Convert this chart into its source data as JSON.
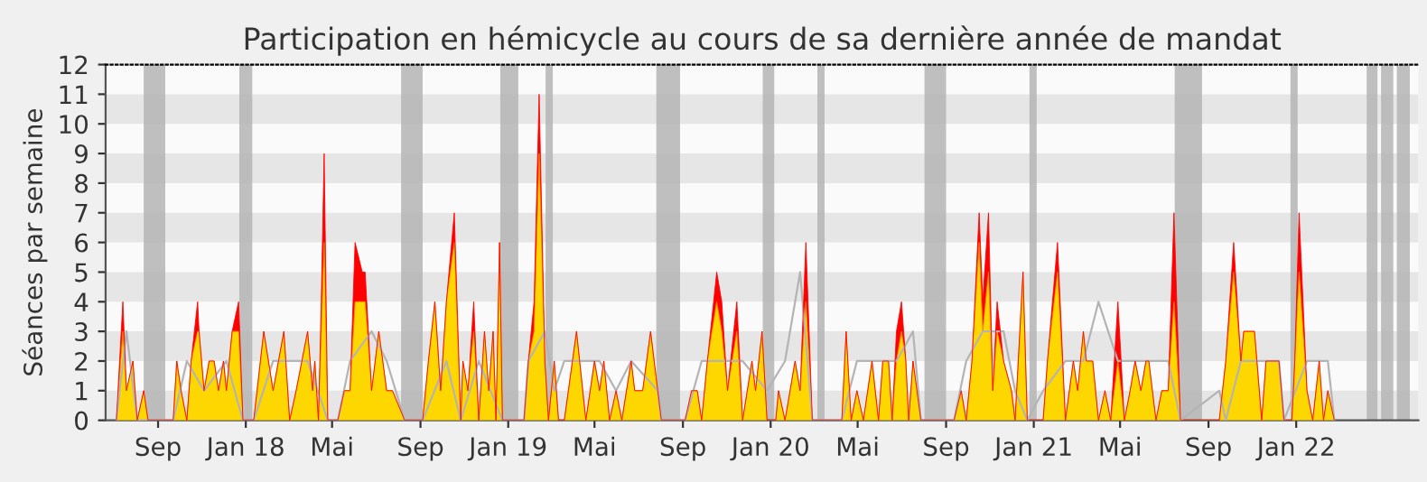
{
  "chart_data": {
    "type": "area",
    "title": "Participation en hémicycle au cours de sa dernière année de mandat",
    "ylabel": "Séances par semaine",
    "xlim": [
      "2017-06-20",
      "2022-06-20"
    ],
    "ylim": [
      0,
      12
    ],
    "yticks": [
      0,
      1,
      2,
      3,
      4,
      5,
      6,
      7,
      8,
      9,
      10,
      11,
      12
    ],
    "xticks": [
      {
        "value": "2017-09-01",
        "label": "Sep"
      },
      {
        "value": "2018-01-01",
        "label": "Jan 18"
      },
      {
        "value": "2018-05-01",
        "label": "Mai"
      },
      {
        "value": "2018-09-01",
        "label": "Sep"
      },
      {
        "value": "2019-01-01",
        "label": "Jan 19"
      },
      {
        "value": "2019-05-01",
        "label": "Mai"
      },
      {
        "value": "2019-09-01",
        "label": "Sep"
      },
      {
        "value": "2020-01-01",
        "label": "Jan 20"
      },
      {
        "value": "2020-05-01",
        "label": "Mai"
      },
      {
        "value": "2020-09-01",
        "label": "Sep"
      },
      {
        "value": "2021-01-01",
        "label": "Jan 21"
      },
      {
        "value": "2021-05-01",
        "label": "Mai"
      },
      {
        "value": "2021-09-01",
        "label": "Sep"
      },
      {
        "value": "2022-01-01",
        "label": "Jan 22"
      }
    ],
    "legend": false,
    "series": [
      {
        "color": "#ff0000",
        "x": [
          "2017-07-05",
          "2017-07-14",
          "2017-07-19",
          "2017-07-28",
          "2017-08-03",
          "2017-08-12",
          "2017-08-18",
          "2017-09-22",
          "2017-09-27",
          "2017-10-03",
          "2017-10-11",
          "2017-10-17",
          "2017-10-26",
          "2017-10-28",
          "2017-11-04",
          "2017-11-11",
          "2017-11-18",
          "2017-11-24",
          "2017-12-01",
          "2017-12-05",
          "2017-12-13",
          "2017-12-22",
          "2017-12-28",
          "2018-01-12",
          "2018-01-26",
          "2018-02-08",
          "2018-02-23",
          "2018-03-03",
          "2018-03-12",
          "2018-03-28",
          "2018-04-04",
          "2018-04-07",
          "2018-04-12",
          "2018-04-16",
          "2018-04-20",
          "2018-04-25",
          "2018-05-09",
          "2018-05-18",
          "2018-05-26",
          "2018-06-02",
          "2018-06-12",
          "2018-06-16",
          "2018-06-25",
          "2018-07-05",
          "2018-07-16",
          "2018-07-24",
          "2018-08-10",
          "2018-09-04",
          "2018-09-12",
          "2018-09-21",
          "2018-09-29",
          "2018-10-07",
          "2018-10-18",
          "2018-10-27",
          "2018-10-30",
          "2018-11-06",
          "2018-11-14",
          "2018-11-21",
          "2018-11-29",
          "2018-12-05",
          "2018-12-11",
          "2018-12-15",
          "2018-12-20",
          "2018-12-24",
          "2019-01-23",
          "2019-01-29",
          "2019-02-06",
          "2019-02-13",
          "2019-02-21",
          "2019-02-26",
          "2019-03-06",
          "2019-03-12",
          "2019-03-20",
          "2019-04-06",
          "2019-04-19",
          "2019-05-01",
          "2019-05-08",
          "2019-05-14",
          "2019-05-22",
          "2019-05-31",
          "2019-06-08",
          "2019-06-21",
          "2019-06-26",
          "2019-07-07",
          "2019-07-18",
          "2019-07-28",
          "2019-08-02",
          "2019-09-04",
          "2019-09-13",
          "2019-09-21",
          "2019-09-27",
          "2019-10-05",
          "2019-10-18",
          "2019-10-25",
          "2019-11-02",
          "2019-11-15",
          "2019-11-23",
          "2019-12-06",
          "2019-12-11",
          "2019-12-20",
          "2019-12-27",
          "2020-01-08",
          "2020-01-12",
          "2020-01-21",
          "2020-02-04",
          "2020-02-11",
          "2020-02-19",
          "2020-02-28",
          "2020-04-09",
          "2020-04-15",
          "2020-04-22",
          "2020-04-30",
          "2020-05-09",
          "2020-05-21",
          "2020-05-30",
          "2020-06-05",
          "2020-06-13",
          "2020-06-18",
          "2020-06-24",
          "2020-07-01",
          "2020-07-07",
          "2020-07-11",
          "2020-07-17",
          "2020-07-28",
          "2020-09-12",
          "2020-09-22",
          "2020-09-29",
          "2020-10-07",
          "2020-10-17",
          "2020-10-22",
          "2020-10-30",
          "2020-11-05",
          "2020-11-11",
          "2020-11-20",
          "2020-12-01",
          "2020-12-06",
          "2020-12-17",
          "2020-12-23",
          "2021-01-14",
          "2021-01-20",
          "2021-02-03",
          "2021-02-14",
          "2021-02-25",
          "2021-03-03",
          "2021-03-11",
          "2021-03-15",
          "2021-03-24",
          "2021-04-01",
          "2021-04-10",
          "2021-04-18",
          "2021-04-28",
          "2021-05-07",
          "2021-05-15",
          "2021-05-22",
          "2021-05-30",
          "2021-06-06",
          "2021-06-10",
          "2021-06-20",
          "2021-06-28",
          "2021-07-07",
          "2021-07-15",
          "2021-07-24",
          "2021-09-16",
          "2021-09-25",
          "2021-10-06",
          "2021-10-16",
          "2021-10-20",
          "2021-11-04",
          "2021-11-14",
          "2021-11-20",
          "2021-12-08",
          "2021-12-15",
          "2021-12-26",
          "2021-12-30",
          "2022-01-05",
          "2022-01-16",
          "2022-01-24",
          "2022-02-02",
          "2022-02-08",
          "2022-02-14",
          "2022-02-23"
        ],
        "values": [
          0,
          4,
          1,
          2,
          0,
          1,
          0,
          0,
          2,
          1,
          0,
          2,
          4,
          3,
          1,
          2,
          2,
          1,
          2,
          1,
          3,
          4,
          0,
          0,
          3,
          1,
          3,
          0,
          1,
          3,
          1,
          2,
          0,
          4,
          9,
          0,
          0,
          1,
          1,
          6,
          5,
          5,
          1,
          3,
          1,
          1,
          0,
          0,
          2,
          4,
          1,
          4,
          7,
          0,
          2,
          1,
          4,
          0,
          3,
          1,
          3,
          0,
          6,
          0,
          0,
          2,
          4,
          11,
          2,
          0,
          2,
          0,
          0,
          3,
          0,
          2,
          1,
          2,
          0,
          1,
          0,
          2,
          1,
          1,
          3,
          1,
          0,
          0,
          1,
          1,
          0,
          2,
          5,
          4,
          1,
          4,
          0,
          2,
          1,
          3,
          0,
          0,
          1,
          0,
          2,
          1,
          6,
          0,
          0,
          3,
          0,
          1,
          0,
          2,
          0,
          2,
          2,
          0,
          3,
          4,
          2,
          0,
          2,
          0,
          0,
          1,
          0,
          2,
          7,
          4,
          7,
          1,
          4,
          2,
          1,
          0,
          5,
          0,
          0,
          2,
          6,
          0,
          2,
          1,
          3,
          2,
          2,
          0,
          1,
          0,
          4,
          0,
          1,
          2,
          1,
          2,
          2,
          0,
          1,
          1,
          7,
          0,
          0,
          2,
          6,
          2,
          3,
          3,
          0,
          2,
          2,
          0,
          0,
          2,
          7,
          1,
          0,
          2,
          0,
          1,
          0
        ]
      },
      {
        "color": "#ffd700",
        "x": [
          "2017-07-05",
          "2017-07-14",
          "2017-07-19",
          "2017-07-28",
          "2017-08-03",
          "2017-08-12",
          "2017-08-18",
          "2017-09-22",
          "2017-09-27",
          "2017-10-03",
          "2017-10-11",
          "2017-10-17",
          "2017-10-26",
          "2017-10-28",
          "2017-11-04",
          "2017-11-11",
          "2017-11-18",
          "2017-11-24",
          "2017-12-01",
          "2017-12-05",
          "2017-12-13",
          "2017-12-22",
          "2017-12-28",
          "2018-01-12",
          "2018-01-26",
          "2018-02-08",
          "2018-02-23",
          "2018-03-03",
          "2018-03-12",
          "2018-03-28",
          "2018-04-04",
          "2018-04-07",
          "2018-04-12",
          "2018-04-16",
          "2018-04-20",
          "2018-04-25",
          "2018-05-09",
          "2018-05-18",
          "2018-05-26",
          "2018-06-02",
          "2018-06-12",
          "2018-06-16",
          "2018-06-25",
          "2018-07-05",
          "2018-07-16",
          "2018-07-24",
          "2018-08-10",
          "2018-09-04",
          "2018-09-12",
          "2018-09-21",
          "2018-09-29",
          "2018-10-07",
          "2018-10-18",
          "2018-10-27",
          "2018-10-30",
          "2018-11-06",
          "2018-11-14",
          "2018-11-21",
          "2018-11-29",
          "2018-12-05",
          "2018-12-11",
          "2018-12-15",
          "2018-12-20",
          "2018-12-24",
          "2019-01-23",
          "2019-01-29",
          "2019-02-06",
          "2019-02-13",
          "2019-02-21",
          "2019-02-26",
          "2019-03-06",
          "2019-03-12",
          "2019-03-20",
          "2019-04-06",
          "2019-04-19",
          "2019-05-01",
          "2019-05-08",
          "2019-05-14",
          "2019-05-22",
          "2019-05-31",
          "2019-06-08",
          "2019-06-21",
          "2019-06-26",
          "2019-07-07",
          "2019-07-18",
          "2019-07-28",
          "2019-08-02",
          "2019-09-04",
          "2019-09-13",
          "2019-09-21",
          "2019-09-27",
          "2019-10-05",
          "2019-10-18",
          "2019-10-25",
          "2019-11-02",
          "2019-11-15",
          "2019-11-23",
          "2019-12-06",
          "2019-12-11",
          "2019-12-20",
          "2019-12-27",
          "2020-01-08",
          "2020-01-12",
          "2020-01-21",
          "2020-02-04",
          "2020-02-11",
          "2020-02-19",
          "2020-02-28",
          "2020-04-09",
          "2020-04-15",
          "2020-04-22",
          "2020-04-30",
          "2020-05-09",
          "2020-05-21",
          "2020-05-30",
          "2020-06-05",
          "2020-06-13",
          "2020-06-18",
          "2020-06-24",
          "2020-07-01",
          "2020-07-07",
          "2020-07-11",
          "2020-07-17",
          "2020-07-28",
          "2020-09-12",
          "2020-09-22",
          "2020-09-29",
          "2020-10-07",
          "2020-10-17",
          "2020-10-22",
          "2020-10-30",
          "2020-11-05",
          "2020-11-11",
          "2020-11-20",
          "2020-12-01",
          "2020-12-06",
          "2020-12-17",
          "2020-12-23",
          "2021-01-14",
          "2021-01-20",
          "2021-02-03",
          "2021-02-14",
          "2021-02-25",
          "2021-03-03",
          "2021-03-11",
          "2021-03-15",
          "2021-03-24",
          "2021-04-01",
          "2021-04-10",
          "2021-04-18",
          "2021-04-28",
          "2021-05-07",
          "2021-05-15",
          "2021-05-22",
          "2021-05-30",
          "2021-06-06",
          "2021-06-10",
          "2021-06-20",
          "2021-06-28",
          "2021-07-07",
          "2021-07-15",
          "2021-07-24",
          "2021-09-16",
          "2021-09-25",
          "2021-10-06",
          "2021-10-16",
          "2021-10-20",
          "2021-11-04",
          "2021-11-14",
          "2021-11-20",
          "2021-12-08",
          "2021-12-15",
          "2021-12-26",
          "2021-12-30",
          "2022-01-05",
          "2022-01-16",
          "2022-01-24",
          "2022-02-02",
          "2022-02-08",
          "2022-02-14",
          "2022-02-23"
        ],
        "values": [
          0,
          3,
          1,
          2,
          0,
          1,
          0,
          0,
          2,
          1,
          0,
          2,
          3,
          3,
          1,
          2,
          2,
          1,
          2,
          1,
          3,
          3,
          0,
          0,
          3,
          1,
          3,
          0,
          1,
          3,
          1,
          2,
          0,
          3,
          6,
          0,
          0,
          1,
          1,
          4,
          4,
          4,
          1,
          3,
          1,
          1,
          0,
          0,
          2,
          4,
          1,
          4,
          6,
          0,
          2,
          1,
          3,
          0,
          3,
          1,
          3,
          0,
          6,
          0,
          0,
          2,
          3,
          9,
          2,
          0,
          2,
          0,
          0,
          3,
          0,
          2,
          1,
          2,
          0,
          1,
          0,
          2,
          1,
          1,
          3,
          1,
          0,
          0,
          1,
          1,
          0,
          2,
          4,
          3,
          1,
          3,
          0,
          2,
          1,
          3,
          0,
          0,
          1,
          0,
          2,
          1,
          4,
          0,
          0,
          3,
          0,
          1,
          0,
          2,
          0,
          2,
          2,
          0,
          2,
          3,
          2,
          0,
          2,
          0,
          0,
          1,
          0,
          2,
          6,
          3,
          5,
          1,
          3,
          2,
          1,
          0,
          5,
          0,
          0,
          2,
          5,
          0,
          2,
          1,
          3,
          2,
          2,
          0,
          1,
          0,
          2,
          0,
          1,
          2,
          1,
          2,
          2,
          0,
          1,
          1,
          4,
          0,
          0,
          2,
          5,
          2,
          3,
          3,
          0,
          2,
          2,
          0,
          0,
          2,
          5,
          1,
          0,
          2,
          0,
          1,
          0
        ]
      },
      {
        "type": "line",
        "color": "#b4b4b4",
        "x": [
          "2017-07-05",
          "2017-07-19",
          "2017-08-03",
          "2017-09-22",
          "2017-10-11",
          "2017-11-04",
          "2017-12-05",
          "2017-12-28",
          "2018-01-12",
          "2018-02-08",
          "2018-03-03",
          "2018-03-28",
          "2018-04-25",
          "2018-05-09",
          "2018-05-26",
          "2018-06-25",
          "2018-07-16",
          "2018-08-10",
          "2018-09-04",
          "2018-10-07",
          "2018-10-27",
          "2018-11-21",
          "2018-12-24",
          "2019-01-23",
          "2019-01-29",
          "2019-02-21",
          "2019-03-06",
          "2019-03-20",
          "2019-04-19",
          "2019-05-08",
          "2019-05-31",
          "2019-06-21",
          "2019-07-28",
          "2019-08-02",
          "2019-09-04",
          "2019-09-27",
          "2019-10-25",
          "2019-11-23",
          "2019-12-27",
          "2020-01-21",
          "2020-02-11",
          "2020-02-28",
          "2020-04-09",
          "2020-04-30",
          "2020-05-30",
          "2020-06-24",
          "2020-07-17",
          "2020-07-28",
          "2020-09-12",
          "2020-09-29",
          "2020-10-22",
          "2020-11-20",
          "2020-12-06",
          "2020-12-23",
          "2021-01-14",
          "2021-02-14",
          "2021-03-11",
          "2021-04-01",
          "2021-04-28",
          "2021-05-30",
          "2021-06-20",
          "2021-07-07",
          "2021-07-24",
          "2021-09-16",
          "2021-09-25",
          "2021-10-16",
          "2021-11-04",
          "2021-12-08",
          "2021-12-15",
          "2022-01-16",
          "2022-01-24",
          "2022-02-14",
          "2022-02-23"
        ],
        "values": [
          0,
          3,
          0,
          0,
          2,
          1,
          2,
          0,
          0,
          2,
          2,
          2,
          0,
          0,
          2,
          3,
          2,
          0,
          0,
          2,
          0,
          2,
          0,
          0,
          2,
          3,
          1,
          2,
          2,
          2,
          1,
          2,
          1,
          0,
          0,
          2,
          2,
          2,
          1,
          2,
          5,
          0,
          0,
          2,
          2,
          2,
          3,
          0,
          0,
          2,
          3,
          3,
          1,
          0,
          1,
          2,
          2,
          4,
          2,
          2,
          2,
          2,
          0,
          1,
          0,
          2,
          2,
          2,
          0,
          2,
          2,
          2,
          0
        ]
      }
    ],
    "bands": [
      {
        "axis": "x",
        "from": "2017-08-12",
        "to": "2017-09-11",
        "color": "#b4b4b4"
      },
      {
        "axis": "x",
        "from": "2017-12-23",
        "to": "2018-01-10",
        "color": "#b4b4b4"
      },
      {
        "axis": "x",
        "from": "2018-08-05",
        "to": "2018-09-04",
        "color": "#b4b4b4"
      },
      {
        "axis": "x",
        "from": "2018-12-21",
        "to": "2019-01-15",
        "color": "#b4b4b4"
      },
      {
        "axis": "x",
        "from": "2019-02-22",
        "to": "2019-03-04",
        "color": "#b4b4b4"
      },
      {
        "axis": "x",
        "from": "2019-07-26",
        "to": "2019-08-28",
        "color": "#b4b4b4"
      },
      {
        "axis": "x",
        "from": "2019-12-21",
        "to": "2020-01-06",
        "color": "#b4b4b4"
      },
      {
        "axis": "x",
        "from": "2020-03-06",
        "to": "2020-03-16",
        "color": "#b4b4b4"
      },
      {
        "axis": "x",
        "from": "2020-08-02",
        "to": "2020-09-01",
        "color": "#b4b4b4"
      },
      {
        "axis": "x",
        "from": "2020-12-26",
        "to": "2021-01-05",
        "color": "#b4b4b4"
      },
      {
        "axis": "x",
        "from": "2021-07-16",
        "to": "2021-08-23",
        "color": "#b4b4b4"
      },
      {
        "axis": "x",
        "from": "2021-12-24",
        "to": "2022-01-03",
        "color": "#b4b4b4"
      },
      {
        "axis": "x",
        "from": "2022-04-09",
        "to": "2022-04-24",
        "color": "#b4b4b4"
      },
      {
        "axis": "x",
        "from": "2022-04-29",
        "to": "2022-05-16",
        "color": "#b4b4b4"
      },
      {
        "axis": "x",
        "from": "2022-05-21",
        "to": "2022-06-08",
        "color": "#b4b4b4"
      }
    ]
  }
}
